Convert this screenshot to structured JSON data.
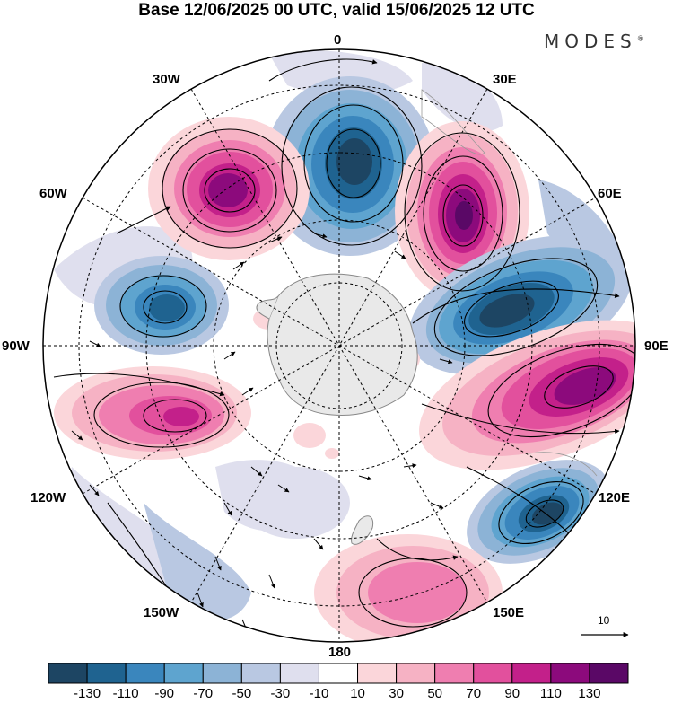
{
  "title": "Base 12/06/2025 00 UTC, valid 15/06/2025 12 UTC",
  "brand": "MODES",
  "brand_mark": "®",
  "longitude_labels": {
    "0": "0",
    "30E": "30E",
    "60E": "60E",
    "90E": "90E",
    "120E": "120E",
    "150E": "150E",
    "180": "180",
    "150W": "150W",
    "120W": "120W",
    "90W": "90W",
    "60W": "60W",
    "30W": "30W"
  },
  "colorbar": {
    "labels": [
      "-130",
      "-110",
      "-90",
      "-70",
      "-50",
      "-30",
      "-10",
      "10",
      "30",
      "50",
      "70",
      "90",
      "110",
      "130"
    ],
    "colors": [
      "#1d4563",
      "#1f6390",
      "#3a86bd",
      "#5ea4cf",
      "#8cb3d6",
      "#b9c8e2",
      "#dfdfee",
      "#ffffff",
      "#fbd6da",
      "#f6b2c4",
      "#ef7eb0",
      "#e2509d",
      "#c3208a",
      "#8c0a7c",
      "#5a0866"
    ]
  },
  "vector_reference": "10",
  "colors": {
    "land": "#e9e9e9",
    "coast": "#777777",
    "graticule": "#000000"
  }
}
